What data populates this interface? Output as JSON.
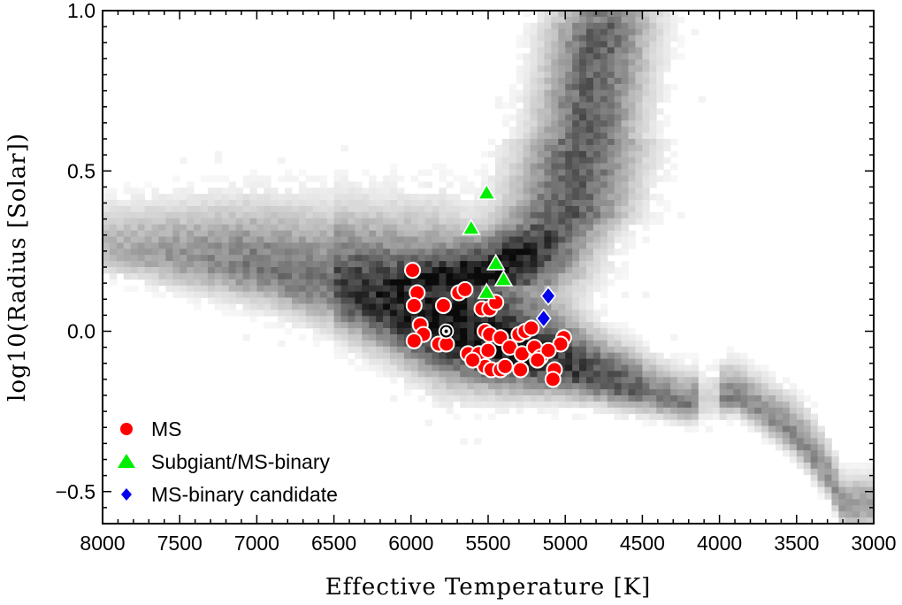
{
  "chart_data": {
    "type": "scatter",
    "xlabel": "Effective Temperature [K]",
    "ylabel": "log10(Radius [Solar])",
    "xlim": [
      8000,
      3000
    ],
    "ylim": [
      -0.6,
      1.0
    ],
    "x_inverted": true,
    "xticks": [
      8000,
      7500,
      7000,
      6500,
      6000,
      5500,
      5000,
      4500,
      4000,
      3500,
      3000
    ],
    "xtick_labels": [
      "8000",
      "7500",
      "7000",
      "6500",
      "6000",
      "5500",
      "5000",
      "4500",
      "4000",
      "3500",
      "3000"
    ],
    "yticks": [
      1.0,
      0.5,
      0.0,
      -0.5
    ],
    "ytick_labels": [
      "1.0",
      "0.5",
      "0.0",
      "−0.5"
    ],
    "grid": false,
    "legend_position": "bottom-left",
    "background": "grey-scale 2D density of stars (main sequence from 8000 K to 3200 K, giant branch rising near 5000–4700 K)",
    "sun_marker": {
      "x": 5772,
      "y": 0.0,
      "symbol": "sun-symbol"
    },
    "series": [
      {
        "name": "MS",
        "marker": "circle",
        "color": "#ff0000",
        "points": [
          [
            5990,
            0.19
          ],
          [
            5960,
            0.12
          ],
          [
            5980,
            0.08
          ],
          [
            5790,
            0.08
          ],
          [
            5690,
            0.12
          ],
          [
            5650,
            0.13
          ],
          [
            5540,
            0.07
          ],
          [
            5490,
            0.07
          ],
          [
            5450,
            0.09
          ],
          [
            5940,
            0.02
          ],
          [
            5920,
            -0.01
          ],
          [
            5980,
            -0.03
          ],
          [
            5820,
            -0.04
          ],
          [
            5770,
            -0.04
          ],
          [
            5520,
            0.0
          ],
          [
            5490,
            -0.01
          ],
          [
            5420,
            -0.02
          ],
          [
            5300,
            -0.01
          ],
          [
            5260,
            0.0
          ],
          [
            5220,
            0.01
          ],
          [
            5010,
            -0.02
          ],
          [
            5030,
            -0.04
          ],
          [
            5630,
            -0.07
          ],
          [
            5560,
            -0.07
          ],
          [
            5500,
            -0.06
          ],
          [
            5520,
            -0.11
          ],
          [
            5480,
            -0.12
          ],
          [
            5420,
            -0.12
          ],
          [
            5390,
            -0.11
          ],
          [
            5360,
            -0.05
          ],
          [
            5280,
            -0.07
          ],
          [
            5200,
            -0.05
          ],
          [
            5160,
            -0.08
          ],
          [
            5110,
            -0.06
          ],
          [
            5070,
            -0.12
          ],
          [
            5080,
            -0.15
          ],
          [
            5180,
            -0.09
          ],
          [
            5290,
            -0.12
          ],
          [
            5600,
            -0.09
          ]
        ]
      },
      {
        "name": "Subgiant/MS-binary",
        "marker": "triangle",
        "color": "#00ee00",
        "points": [
          [
            5510,
            0.43
          ],
          [
            5610,
            0.32
          ],
          [
            5450,
            0.21
          ],
          [
            5400,
            0.16
          ],
          [
            5510,
            0.12
          ]
        ]
      },
      {
        "name": "MS-binary candidate",
        "marker": "diamond",
        "color": "#0000ee",
        "points": [
          [
            5110,
            0.11
          ],
          [
            5140,
            0.04
          ]
        ]
      }
    ]
  }
}
